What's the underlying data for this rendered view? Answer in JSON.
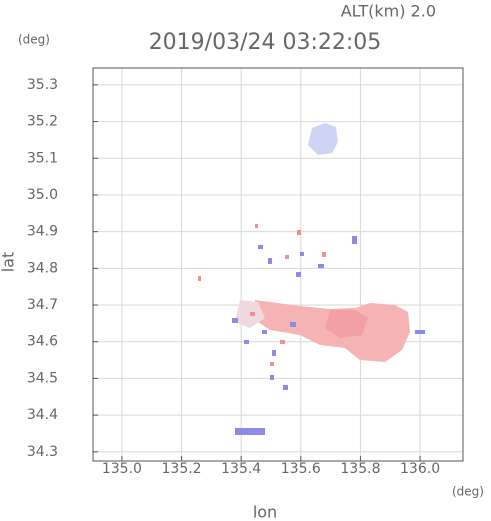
{
  "chart_data": {
    "type": "map",
    "title": "2019/03/24 03:22:05",
    "annotation": "ALT(km) 2.0",
    "xlabel": "lon",
    "ylabel": "lat",
    "xunit": "(deg)",
    "yunit": "(deg)",
    "xlim": [
      134.903,
      136.144
    ],
    "xticks": [
      {
        "value": 135.0,
        "label": "135.0"
      },
      135.2,
      135.4,
      135.6,
      135.8,
      {
        "value": 136.0,
        "label": "136.0"
      }
    ],
    "ylim": [
      34.275,
      35.346
    ],
    "yticks": [
      34.3,
      34.4,
      34.5,
      34.6,
      34.7,
      34.8,
      34.9,
      {
        "value": 35.0,
        "label": "35.0"
      },
      35.1,
      35.2,
      35.3
    ],
    "grid": true
  }
}
